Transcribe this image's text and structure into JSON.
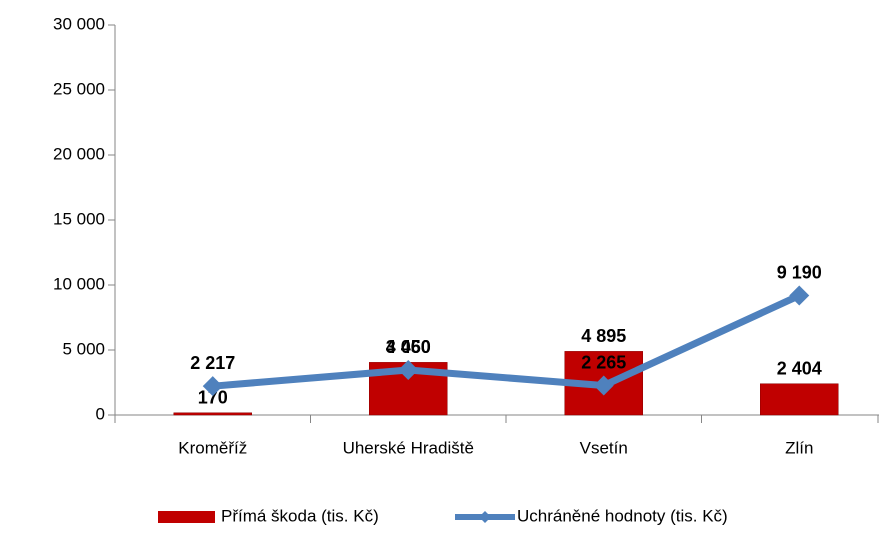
{
  "chart_data": {
    "type": "bar",
    "categories": [
      "Kroměříž",
      "Uherské Hradiště",
      "Vsetín",
      "Zlín"
    ],
    "series": [
      {
        "name": "Přímá škoda (tis. Kč)",
        "type": "bar",
        "color": "#c00000",
        "values": [
          170,
          4050,
          4895,
          2404
        ],
        "value_labels": [
          "170",
          "4 050",
          "4 895",
          "2 404"
        ]
      },
      {
        "name": "Uchráněné hodnoty (tis. Kč)",
        "type": "line",
        "color": "#4f81bd",
        "values": [
          2217,
          3460,
          2265,
          9190
        ],
        "value_labels": [
          "2 217",
          "3 460",
          "2 265",
          "9 190"
        ]
      }
    ],
    "ylim": [
      0,
      30000
    ],
    "yticks": [
      {
        "value": 0,
        "label": "0"
      },
      {
        "value": 5000,
        "label": "5 000"
      },
      {
        "value": 10000,
        "label": "10 000"
      },
      {
        "value": 15000,
        "label": "15 000"
      },
      {
        "value": 20000,
        "label": "20 000"
      },
      {
        "value": 25000,
        "label": "25 000"
      },
      {
        "value": 30000,
        "label": "30 000"
      }
    ],
    "legend": "bottom"
  }
}
